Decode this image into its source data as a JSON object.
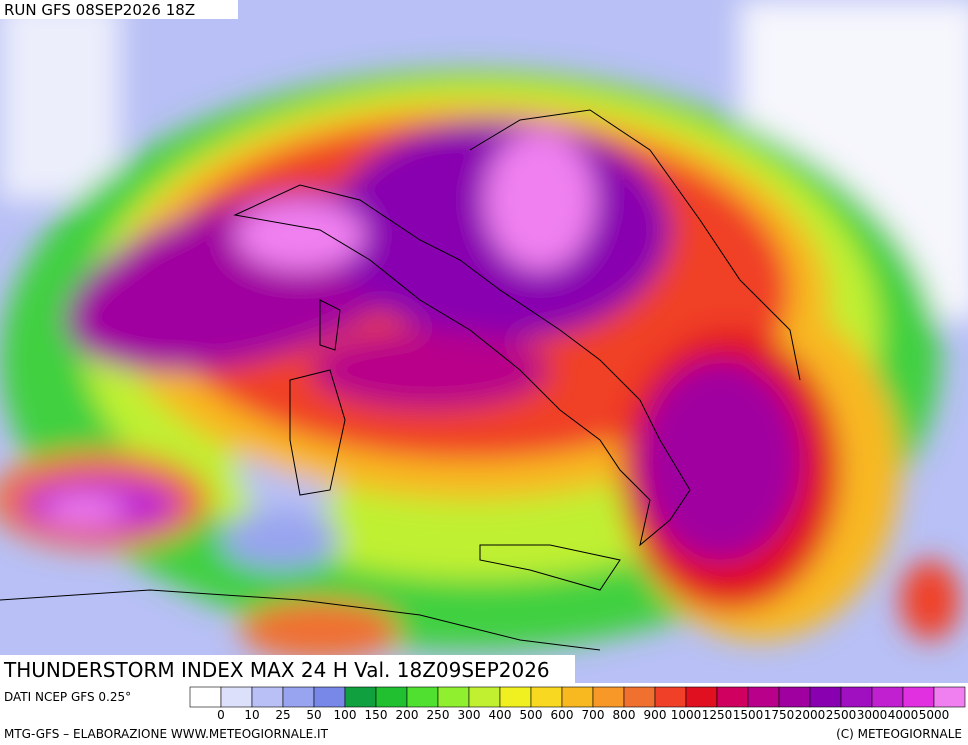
{
  "header": {
    "run": "RUN GFS 08SEP2026 18Z"
  },
  "title": "THUNDERSTORM INDEX MAX 24 H Val. 18Z09SEP2026",
  "source": "DATI NCEP GFS 0.25°",
  "legend": {
    "thresholds": [
      0,
      10,
      25,
      50,
      100,
      150,
      200,
      250,
      300,
      400,
      500,
      600,
      700,
      800,
      900,
      1000,
      1250,
      1500,
      1750,
      2000,
      2500,
      3000,
      4000,
      5000
    ],
    "colors": [
      "#ffffff",
      "#dde0fa",
      "#b8c0f5",
      "#98a4ef",
      "#7888e8",
      "#10a040",
      "#20c030",
      "#50e030",
      "#90f030",
      "#c0f030",
      "#f0f020",
      "#f8d820",
      "#f8b820",
      "#f89828",
      "#f07030",
      "#f04028",
      "#e01020",
      "#d00060",
      "#b8008a",
      "#a000a0",
      "#8800b0",
      "#a010c0",
      "#c020d0",
      "#e030e0",
      "#f080f0"
    ]
  },
  "footer": {
    "left": "MTG-GFS – ELABORAZIONE WWW.METEOGIORNALE.IT",
    "right": "(C) METEOGIORNALE"
  }
}
